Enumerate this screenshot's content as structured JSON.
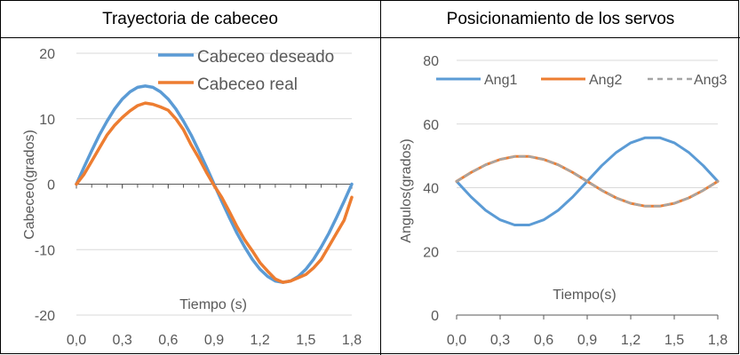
{
  "chart_data": [
    {
      "type": "line",
      "title": "Trayectoria de cabeceo",
      "xlabel": "Tiempo (s)",
      "ylabel": "Cabeceo(grados)",
      "xlim": [
        0,
        1.8
      ],
      "ylim": [
        -20,
        20
      ],
      "xticks": [
        "0,0",
        "0,3",
        "0,6",
        "0,9",
        "1,2",
        "1,5",
        "1,8"
      ],
      "yticks": [
        "-20",
        "-10",
        "0",
        "10",
        "20"
      ],
      "grid": true,
      "legend": "top-right",
      "series": [
        {
          "name": "Cabeceo deseado",
          "color": "#5B9BD5",
          "style": "solid",
          "x": [
            0,
            0.05,
            0.1,
            0.15,
            0.2,
            0.25,
            0.3,
            0.35,
            0.4,
            0.45,
            0.5,
            0.55,
            0.6,
            0.65,
            0.7,
            0.75,
            0.8,
            0.85,
            0.9,
            0.95,
            1.0,
            1.05,
            1.1,
            1.15,
            1.2,
            1.25,
            1.3,
            1.35,
            1.4,
            1.45,
            1.5,
            1.55,
            1.6,
            1.65,
            1.7,
            1.75,
            1.8
          ],
          "values": [
            0,
            2.6,
            5.1,
            7.5,
            9.6,
            11.5,
            13.0,
            14.1,
            14.8,
            15.0,
            14.8,
            14.1,
            13.0,
            11.5,
            9.6,
            7.5,
            5.1,
            2.6,
            0,
            -2.6,
            -5.1,
            -7.5,
            -9.6,
            -11.5,
            -13.0,
            -14.1,
            -14.8,
            -15.0,
            -14.8,
            -14.1,
            -13.0,
            -11.5,
            -9.6,
            -7.5,
            -5.1,
            -2.6,
            0
          ]
        },
        {
          "name": "Cabeceo real",
          "color": "#ED7D31",
          "style": "solid",
          "x": [
            0,
            0.05,
            0.1,
            0.15,
            0.2,
            0.25,
            0.3,
            0.35,
            0.4,
            0.45,
            0.5,
            0.55,
            0.6,
            0.65,
            0.7,
            0.75,
            0.8,
            0.85,
            0.9,
            0.95,
            1.0,
            1.05,
            1.1,
            1.15,
            1.2,
            1.25,
            1.3,
            1.35,
            1.4,
            1.45,
            1.5,
            1.55,
            1.6,
            1.65,
            1.7,
            1.75,
            1.8
          ],
          "values": [
            0,
            1.5,
            3.5,
            5.5,
            7.5,
            9.0,
            10.2,
            11.2,
            12.0,
            12.4,
            12.2,
            11.8,
            11.3,
            10.0,
            8.3,
            6.0,
            4.0,
            1.8,
            -0.2,
            -2.0,
            -4.2,
            -6.5,
            -8.5,
            -10.2,
            -12.0,
            -13.3,
            -14.5,
            -15.0,
            -14.8,
            -14.3,
            -13.8,
            -12.8,
            -11.5,
            -9.5,
            -7.5,
            -5.5,
            -2.0
          ]
        }
      ]
    },
    {
      "type": "line",
      "title": "Posicionamiento de los servos",
      "xlabel": "Tiempo(s)",
      "ylabel": "Angulos(grados)",
      "xlim": [
        0,
        1.8
      ],
      "ylim": [
        0,
        80
      ],
      "xticks": [
        "0,0",
        "0,3",
        "0,6",
        "0,9",
        "1,2",
        "1,5",
        "1,8"
      ],
      "yticks": [
        "0",
        "20",
        "40",
        "60",
        "80"
      ],
      "grid": true,
      "legend": "top",
      "series": [
        {
          "name": "Ang1",
          "color": "#5B9BD5",
          "style": "solid",
          "x": [
            0,
            0.1,
            0.2,
            0.3,
            0.4,
            0.5,
            0.6,
            0.7,
            0.8,
            0.9,
            1.0,
            1.1,
            1.2,
            1.3,
            1.4,
            1.5,
            1.6,
            1.7,
            1.8
          ],
          "values": [
            42,
            37.1,
            32.9,
            29.9,
            28.3,
            28.3,
            29.9,
            32.9,
            37.1,
            42,
            46.9,
            51.1,
            54.1,
            55.7,
            55.7,
            54.1,
            51.1,
            46.9,
            42
          ]
        },
        {
          "name": "Ang2",
          "color": "#ED7D31",
          "style": "solid",
          "x": [
            0,
            0.1,
            0.2,
            0.3,
            0.4,
            0.5,
            0.6,
            0.7,
            0.8,
            0.9,
            1.0,
            1.1,
            1.2,
            1.3,
            1.4,
            1.5,
            1.6,
            1.7,
            1.8
          ],
          "values": [
            42,
            44.8,
            47.2,
            48.9,
            49.8,
            49.8,
            48.9,
            47.2,
            44.8,
            42,
            39.2,
            36.8,
            35.1,
            34.2,
            34.2,
            35.1,
            36.8,
            39.2,
            42
          ]
        },
        {
          "name": "Ang3",
          "color": "#A5A5A5",
          "style": "dashed",
          "x": [
            0,
            0.1,
            0.2,
            0.3,
            0.4,
            0.5,
            0.6,
            0.7,
            0.8,
            0.9,
            1.0,
            1.1,
            1.2,
            1.3,
            1.4,
            1.5,
            1.6,
            1.7,
            1.8
          ],
          "values": [
            42,
            44.8,
            47.2,
            48.9,
            49.8,
            49.8,
            48.9,
            47.2,
            44.8,
            42,
            39.2,
            36.8,
            35.1,
            34.2,
            34.2,
            35.1,
            36.8,
            39.2,
            42
          ]
        }
      ]
    }
  ]
}
